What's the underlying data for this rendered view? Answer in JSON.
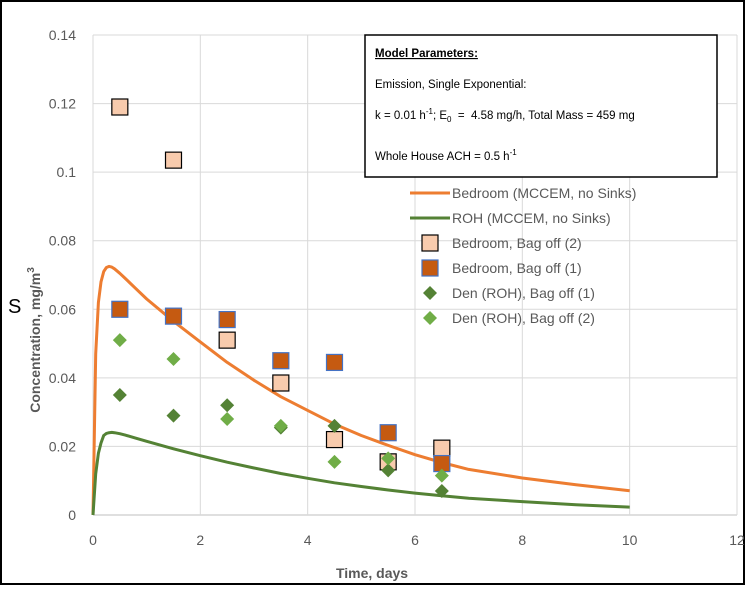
{
  "chart_data": {
    "type": "scatter",
    "xlabel": "Time, days",
    "ylabel": "Concentration, mg/m",
    "ylabel_sup": "3",
    "xlim": [
      0,
      12
    ],
    "ylim": [
      0,
      0.14
    ],
    "x_ticks": [
      "0",
      "2",
      "4",
      "6",
      "8",
      "10",
      "12"
    ],
    "y_ticks": [
      "0",
      "0.02",
      "0.04",
      "0.06",
      "0.08",
      "0.1",
      "0.12",
      "0.14"
    ],
    "grid": true,
    "legend_position": "right",
    "series": [
      {
        "name": "Bedroom (MCCEM, no Sinks)",
        "kind": "line",
        "color": "#ED7D31",
        "x": [
          0,
          0.05,
          0.1,
          0.15,
          0.2,
          0.25,
          0.3,
          0.35,
          0.4,
          0.5,
          0.6,
          0.8,
          1,
          1.5,
          2,
          2.5,
          3,
          3.5,
          4,
          4.5,
          5,
          5.5,
          6,
          6.5,
          7,
          8,
          9,
          10
        ],
        "y": [
          0,
          0.047,
          0.062,
          0.068,
          0.071,
          0.0722,
          0.0725,
          0.0723,
          0.0718,
          0.0705,
          0.069,
          0.066,
          0.063,
          0.0565,
          0.0505,
          0.0445,
          0.0393,
          0.0345,
          0.0305,
          0.0265,
          0.0232,
          0.0203,
          0.0176,
          0.0153,
          0.0133,
          0.0108,
          0.0088,
          0.0071
        ]
      },
      {
        "name": "ROH (MCCEM, no Sinks)",
        "kind": "line",
        "color": "#548235",
        "x": [
          0,
          0.05,
          0.1,
          0.15,
          0.2,
          0.25,
          0.3,
          0.35,
          0.4,
          0.5,
          0.6,
          0.8,
          1,
          1.5,
          2,
          2.5,
          3,
          3.5,
          4,
          4.5,
          5,
          5.5,
          6,
          6.5,
          7,
          8,
          9,
          10
        ],
        "y": [
          0,
          0.012,
          0.018,
          0.021,
          0.0232,
          0.0238,
          0.024,
          0.0241,
          0.024,
          0.0237,
          0.0233,
          0.0224,
          0.0215,
          0.0193,
          0.0173,
          0.0154,
          0.0137,
          0.0121,
          0.0107,
          0.0094,
          0.0083,
          0.0073,
          0.0064,
          0.0056,
          0.0049,
          0.0039,
          0.003,
          0.0023
        ]
      },
      {
        "name": "Bedroom, Bag off (2)",
        "kind": "square",
        "color": "#F8CBAD",
        "stroke": "#000000",
        "x": [
          0.5,
          1.5,
          2.5,
          3.5,
          4.5,
          5.5,
          6.5
        ],
        "y": [
          0.119,
          0.1035,
          0.051,
          0.0385,
          0.022,
          0.0155,
          0.0195
        ]
      },
      {
        "name": "Bedroom, Bag off (1)",
        "kind": "square",
        "color": "#C55A11",
        "stroke": "#4472C4",
        "x": [
          0.5,
          1.5,
          2.5,
          3.5,
          4.5,
          5.5,
          6.5
        ],
        "y": [
          0.06,
          0.058,
          0.057,
          0.045,
          0.0445,
          0.024,
          0.015
        ]
      },
      {
        "name": "Den (ROH), Bag off (1)",
        "kind": "diamond",
        "color": "#548235",
        "x": [
          0.5,
          1.5,
          2.5,
          3.5,
          4.5,
          5.5,
          6.5
        ],
        "y": [
          0.035,
          0.029,
          0.032,
          0.0255,
          0.026,
          0.013,
          0.007
        ]
      },
      {
        "name": "Den (ROH), Bag off (2)",
        "kind": "diamond",
        "color": "#70AD47",
        "x": [
          0.5,
          1.5,
          2.5,
          3.5,
          4.5,
          5.5,
          6.5
        ],
        "y": [
          0.051,
          0.0455,
          0.028,
          0.026,
          0.0155,
          0.0165,
          0.0115
        ]
      }
    ],
    "annotation": {
      "title": "Model Parameters:",
      "line1": "Emission, Single Exponential:",
      "line2_k": "k = 0.01 h",
      "line2_k_sup": "-1",
      "line2_e": "; E",
      "line2_e_sub": "0",
      "line2_rest": "  =  4.58 mg/h, Total Mass = 459 mg",
      "line3": "Whole House ACH = 0.5 h",
      "line3_sup": "-1"
    },
    "stray_text": "S"
  }
}
